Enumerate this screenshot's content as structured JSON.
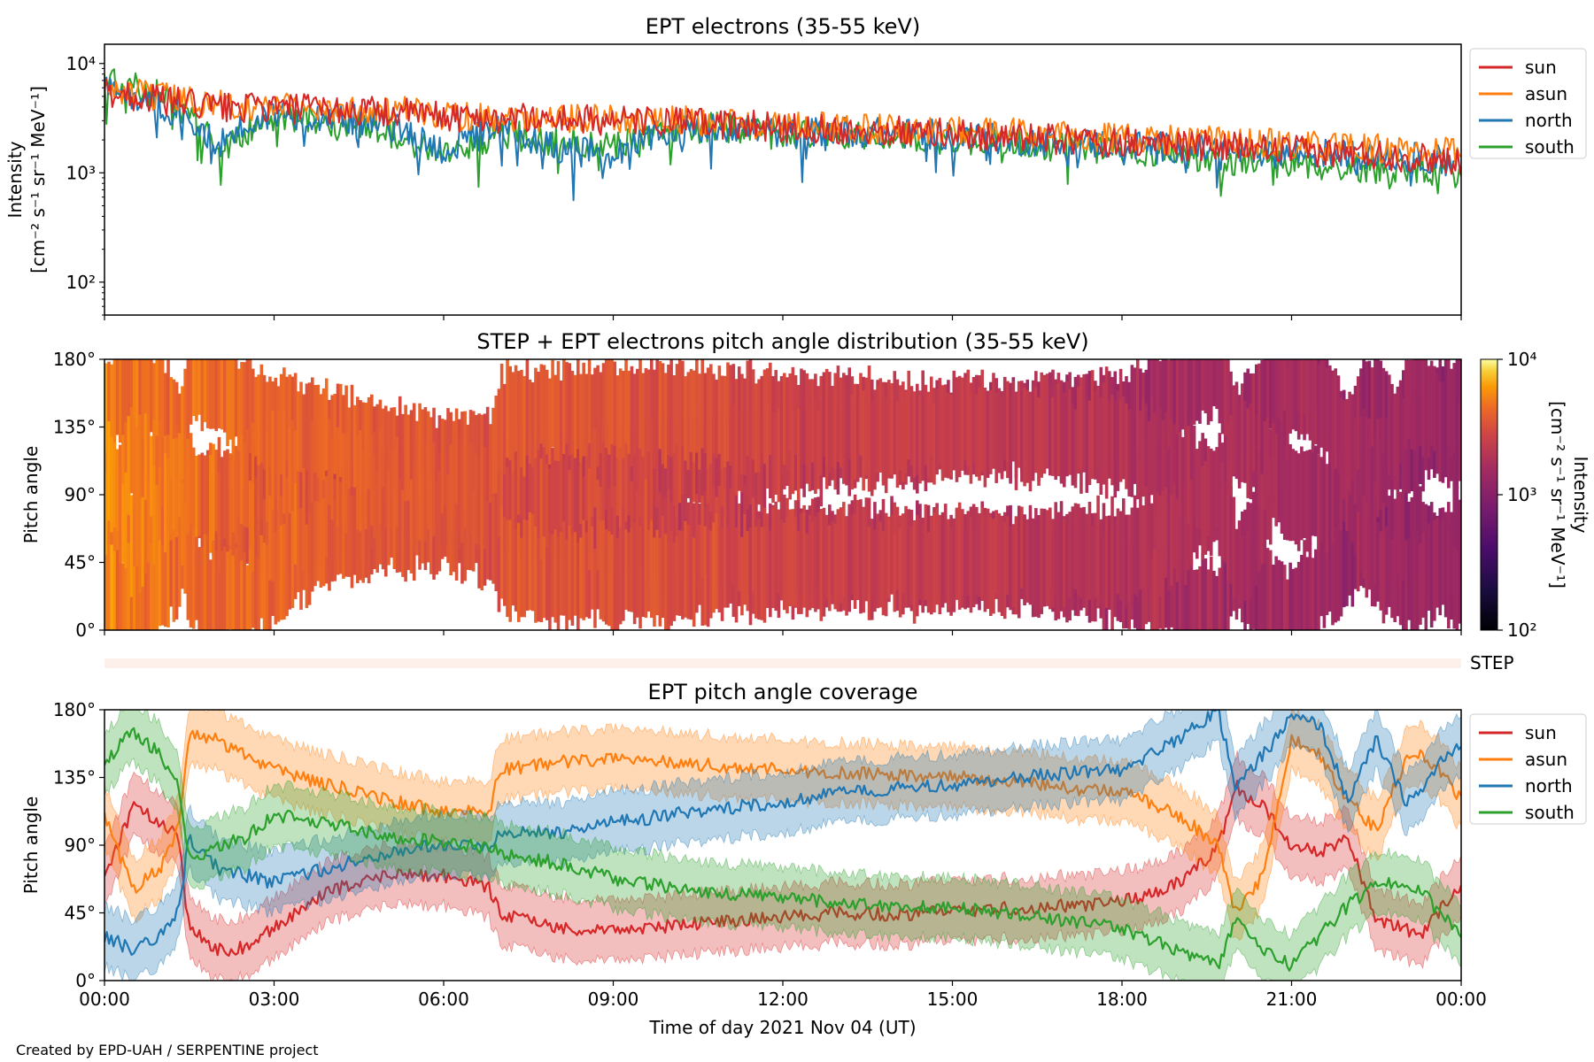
{
  "figure": {
    "credit": "Created by EPD-UAH / SERPENTINE project",
    "xlabel": "Time of day 2021 Nov 04 (UT)",
    "x_ticks": [
      "00:00",
      "03:00",
      "06:00",
      "09:00",
      "12:00",
      "15:00",
      "18:00",
      "21:00",
      "00:00"
    ]
  },
  "colors": {
    "sun": "#d62728",
    "asun": "#ff7f0e",
    "north": "#1f77b4",
    "south": "#2ca02c"
  },
  "chart_data": [
    {
      "type": "line",
      "title": "EPT electrons (35-55 keV)",
      "ylabel_line1": "Intensity",
      "ylabel_line2": "[cm⁻² s⁻¹ sr⁻¹ MeV⁻¹]",
      "yscale": "log",
      "ylim": [
        50,
        15000
      ],
      "y_ticks": [
        "10⁴",
        "10³",
        "10²"
      ],
      "y_tick_values": [
        10000,
        1000,
        100
      ],
      "xlim_hours": [
        0,
        24
      ],
      "legend_position": "right, outside axes",
      "x_hours": [
        0,
        1,
        2,
        3,
        4,
        5,
        6,
        7,
        8,
        9,
        10,
        11,
        12,
        13,
        14,
        15,
        16,
        17,
        18,
        19,
        20,
        21,
        22,
        23,
        24
      ],
      "series": [
        {
          "name": "sun",
          "color_key": "sun",
          "values": [
            5500,
            4600,
            4000,
            3900,
            3800,
            3600,
            3300,
            3200,
            3100,
            3000,
            2900,
            2800,
            2600,
            2500,
            2400,
            2300,
            2100,
            2000,
            1900,
            1800,
            1700,
            1600,
            1500,
            1400,
            1300
          ]
        },
        {
          "name": "asun",
          "color_key": "asun",
          "values": [
            5800,
            4900,
            4200,
            4000,
            3900,
            3700,
            3400,
            3300,
            3200,
            3100,
            3000,
            2900,
            2700,
            2600,
            2500,
            2400,
            2300,
            2200,
            2100,
            2000,
            1900,
            1800,
            1700,
            1600,
            1500
          ]
        },
        {
          "name": "north",
          "color_key": "north",
          "values": [
            6000,
            4200,
            1800,
            3500,
            3300,
            2700,
            1600,
            2500,
            1700,
            1400,
            2400,
            2600,
            2300,
            2400,
            2300,
            2200,
            2000,
            1900,
            1800,
            1700,
            1600,
            1500,
            1500,
            1400,
            1300
          ]
        },
        {
          "name": "south",
          "color_key": "south",
          "values": [
            6800,
            5200,
            1600,
            3100,
            3000,
            2400,
            1400,
            2300,
            1900,
            1800,
            2500,
            2600,
            2300,
            2300,
            2100,
            2000,
            1900,
            1700,
            1600,
            1500,
            1300,
            1200,
            1100,
            1100,
            1000
          ]
        }
      ]
    },
    {
      "type": "heatmap",
      "title": "STEP + EPT electrons pitch angle distribution (35-55 keV)",
      "ylabel": "Pitch angle",
      "ylim": [
        0,
        180
      ],
      "y_ticks": [
        "180°",
        "135°",
        "90°",
        "45°",
        "0°"
      ],
      "y_tick_values": [
        180,
        135,
        90,
        45,
        0
      ],
      "colorbar": {
        "label_line1": "Intensity",
        "label_line2": "[cm⁻² s⁻¹ sr⁻¹ MeV⁻¹]",
        "scale": "log",
        "range": [
          100,
          10000
        ],
        "ticks": [
          "10⁴",
          "10³",
          "10²"
        ],
        "tick_values": [
          10000,
          1000,
          100
        ],
        "colormap": "inferno"
      },
      "step_label": "STEP",
      "x_hours": [
        0,
        1,
        2,
        3,
        4,
        5,
        6,
        7,
        8,
        9,
        10,
        11,
        12,
        13,
        14,
        15,
        16,
        17,
        18,
        19,
        20,
        21,
        22,
        23,
        24
      ],
      "intensity": [
        5500,
        4800,
        4200,
        4000,
        3800,
        3600,
        3300,
        3200,
        3100,
        3000,
        2900,
        2800,
        2600,
        2500,
        2400,
        2300,
        2100,
        2000,
        1900,
        1800,
        1700,
        1600,
        1500,
        1400,
        1300
      ]
    },
    {
      "type": "line",
      "title": "EPT pitch angle coverage",
      "ylabel": "Pitch angle",
      "ylim": [
        0,
        180
      ],
      "y_ticks": [
        "180°",
        "135°",
        "90°",
        "45°",
        "0°"
      ],
      "y_tick_values": [
        180,
        135,
        90,
        45,
        0
      ],
      "legend_position": "right, outside axes",
      "band_halfwidth_deg": 20,
      "x_hours": [
        0,
        0.5,
        1,
        1.3,
        1.5,
        2,
        2.5,
        3,
        4,
        5,
        6,
        6.8,
        7,
        8,
        9,
        10,
        11,
        12,
        13,
        14,
        15,
        16,
        17,
        18,
        19,
        19.7,
        20,
        20.5,
        21,
        21.5,
        22,
        22.5,
        23,
        23.3,
        23.6,
        24
      ],
      "series": [
        {
          "name": "sun",
          "color_key": "sun",
          "values": [
            70,
            115,
            105,
            95,
            35,
            20,
            22,
            35,
            60,
            70,
            70,
            62,
            45,
            35,
            34,
            36,
            40,
            42,
            45,
            44,
            46,
            48,
            50,
            52,
            65,
            88,
            130,
            115,
            90,
            85,
            95,
            40,
            35,
            30,
            45,
            65
          ]
        },
        {
          "name": "asun",
          "color_key": "asun",
          "values": [
            110,
            60,
            75,
            100,
            165,
            160,
            150,
            140,
            130,
            120,
            112,
            112,
            140,
            145,
            148,
            146,
            142,
            140,
            138,
            137,
            135,
            133,
            128,
            125,
            110,
            90,
            45,
            70,
            160,
            150,
            120,
            100,
            145,
            150,
            140,
            120
          ]
        },
        {
          "name": "north",
          "color_key": "north",
          "values": [
            30,
            20,
            30,
            45,
            95,
            75,
            70,
            65,
            75,
            85,
            90,
            90,
            98,
            98,
            105,
            110,
            115,
            118,
            125,
            128,
            130,
            135,
            138,
            140,
            160,
            180,
            130,
            150,
            175,
            170,
            120,
            160,
            120,
            125,
            145,
            155
          ]
        },
        {
          "name": "south",
          "color_key": "south",
          "values": [
            145,
            165,
            150,
            130,
            80,
            90,
            95,
            110,
            105,
            95,
            92,
            88,
            85,
            78,
            68,
            62,
            58,
            55,
            52,
            50,
            48,
            45,
            40,
            35,
            20,
            10,
            40,
            20,
            10,
            30,
            50,
            65,
            65,
            60,
            45,
            30
          ]
        }
      ]
    }
  ]
}
